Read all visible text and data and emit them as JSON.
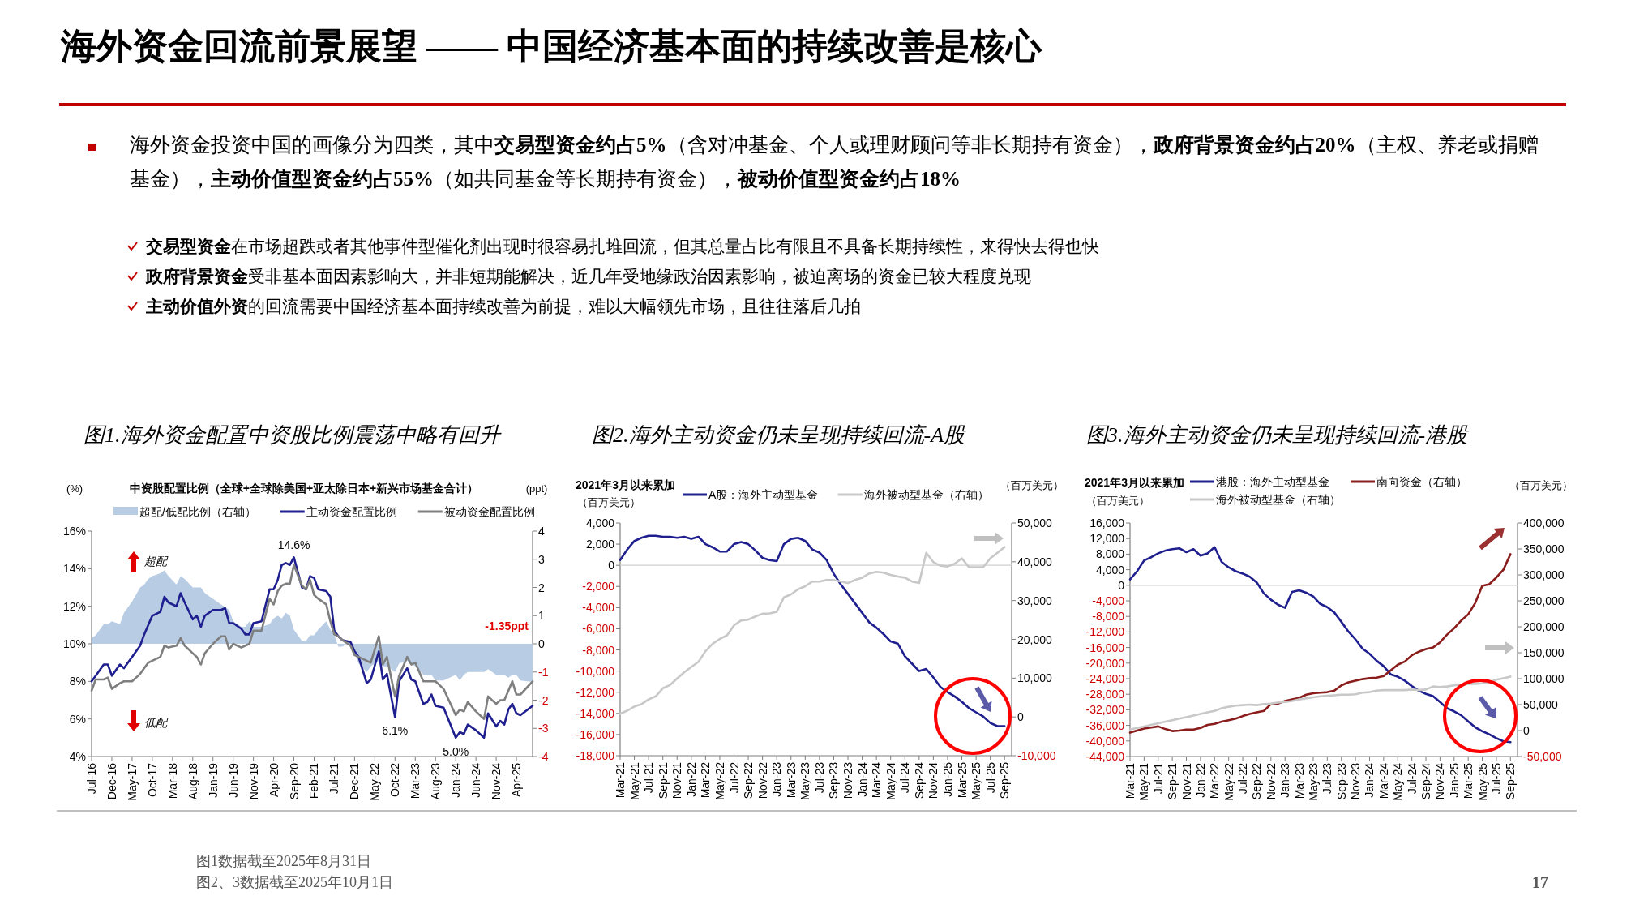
{
  "chart_data": [
    {
      "type": "other",
      "title": "海外资金回流前景展望 —— 中国经济基本面的持续改善是核心",
      "annotations": [
        "海外资金投资中国的画像分为四类，其中**交易型资金约占5%**（含对冲基金、个人或理财顾问等非长期持有资金），**政府背景资金约占20%**（主权、养老或捐赠基金），**主动价值型资金约占55%**（如共同基金等长期持有资金），**被动价值型资金约占18%**",
        "**交易型资金**在市场超跌或者其他事件型催化剂出现时很容易扎堆回流，但其总量占比有限且不具备长期持续性，来得快去得也快",
        "**政府背景资金**受非基本面因素影响大，并非短期能解决，近几年受地缘政治因素影响，被迫离场的资金已较大程度兑现",
        "**主动价值外资**的回流需要中国经济基本面持续改善为前提，难以大幅领先市场，且往往落后几拍",
        "图1数据截至2025年8月31日",
        "图2、3数据截至2025年10月1日",
        "17"
      ]
    },
    {
      "type": "line",
      "title": "图1.海外资金配置中资股比例震荡中略有回升",
      "subtitle": "中资股配置比例（全球+全球除美国+亚太除日本+新兴市场基金合计）",
      "ylabel": "(%)",
      "y2label": "(ppt)",
      "legend": "top",
      "xlim": [
        "2016-07",
        "2025-08"
      ],
      "xticks": [
        {
          "value": "2016-07",
          "label": "Jul-16"
        },
        {
          "value": "2016-12",
          "label": "Dec-16"
        },
        {
          "value": "2017-05",
          "label": "May-17"
        },
        {
          "value": "2017-10",
          "label": "Oct-17"
        },
        {
          "value": "2018-03",
          "label": "Mar-18"
        },
        {
          "value": "2018-08",
          "label": "Aug-18"
        },
        {
          "value": "2019-01",
          "label": "Jan-19"
        },
        {
          "value": "2019-06",
          "label": "Jun-19"
        },
        {
          "value": "2019-11",
          "label": "Nov-19"
        },
        {
          "value": "2020-04",
          "label": "Apr-20"
        },
        {
          "value": "2020-09",
          "label": "Sep-20"
        },
        {
          "value": "2021-02",
          "label": "Feb-21"
        },
        {
          "value": "2021-07",
          "label": "Jul-21"
        },
        {
          "value": "2021-12",
          "label": "Dec-21"
        },
        {
          "value": "2022-05",
          "label": "May-22"
        },
        {
          "value": "2022-10",
          "label": "Oct-22"
        },
        {
          "value": "2023-03",
          "label": "Mar-23"
        },
        {
          "value": "2023-08",
          "label": "Aug-23"
        },
        {
          "value": "2024-01",
          "label": "Jan-24"
        },
        {
          "value": "2024-06",
          "label": "Jun-24"
        },
        {
          "value": "2024-11",
          "label": "Nov-24"
        },
        {
          "value": "2025-04",
          "label": "Apr-25"
        }
      ],
      "ylim": [
        4,
        16
      ],
      "yticks": [
        {
          "value": 4,
          "label": "4%"
        },
        {
          "value": 6,
          "label": "6%"
        },
        {
          "value": 8,
          "label": "8%"
        },
        {
          "value": 10,
          "label": "10%"
        },
        {
          "value": 12,
          "label": "12%"
        },
        {
          "value": 14,
          "label": "14%"
        },
        {
          "value": 16,
          "label": "16%"
        }
      ],
      "y2lim": [
        -4,
        4
      ],
      "y2ticks": [
        -4,
        -3,
        -2,
        -1,
        0,
        1,
        2,
        3,
        4
      ],
      "x": [
        "2016-07",
        "2016-08",
        "2016-10",
        "2016-11",
        "2016-12",
        "2017-02",
        "2017-03",
        "2017-05",
        "2017-07",
        "2017-08",
        "2017-09",
        "2017-10",
        "2017-12",
        "2018-01",
        "2018-02",
        "2018-04",
        "2018-05",
        "2018-06",
        "2018-08",
        "2018-09",
        "2018-10",
        "2018-11",
        "2019-01",
        "2019-03",
        "2019-04",
        "2019-05",
        "2019-06",
        "2019-08",
        "2019-09",
        "2019-10",
        "2019-11",
        "2020-01",
        "2020-03",
        "2020-04",
        "2020-05",
        "2020-06",
        "2020-07",
        "2020-08",
        "2020-09",
        "2020-11",
        "2020-12",
        "2021-01",
        "2021-02",
        "2021-03",
        "2021-05",
        "2021-06",
        "2021-07",
        "2021-08",
        "2021-09",
        "2021-11",
        "2021-12",
        "2022-01",
        "2022-03",
        "2022-04",
        "2022-06",
        "2022-07",
        "2022-08",
        "2022-10",
        "2022-11",
        "2023-01",
        "2023-02",
        "2023-03",
        "2023-05",
        "2023-06",
        "2023-07",
        "2023-08",
        "2023-10",
        "2024-01",
        "2024-02",
        "2024-03",
        "2024-04",
        "2024-06",
        "2024-08",
        "2024-09",
        "2024-11",
        "2024-12",
        "2025-01",
        "2025-02",
        "2025-03",
        "2025-04",
        "2025-05",
        "2025-08"
      ],
      "series": [
        {
          "name": "超配/低配比例（右轴）",
          "type": "area",
          "axis": "y2",
          "color": "#b8cce4",
          "values": [
            0.2,
            0.3,
            0.7,
            0.7,
            0.8,
            0.7,
            1.1,
            1.5,
            2.0,
            2.1,
            2.3,
            2.4,
            2.5,
            2.6,
            2.4,
            2.1,
            2.4,
            2.3,
            2.0,
            2.0,
            2.0,
            1.8,
            1.6,
            1.4,
            1.3,
            1.2,
            0.8,
            0.6,
            0.6,
            0.8,
            0.6,
            0.6,
            0.7,
            0.9,
            1.0,
            0.9,
            1.1,
            1.0,
            0.5,
            0.1,
            0.1,
            0.3,
            0.3,
            0.5,
            0.8,
            0.5,
            0.3,
            -0.1,
            -0.1,
            0.1,
            -0.3,
            -0.7,
            -1.0,
            -0.8,
            -0.6,
            -0.8,
            -0.8,
            -1.0,
            -0.7,
            -0.6,
            -0.7,
            -0.8,
            -1.1,
            -1.1,
            -1.1,
            -1.3,
            -1.3,
            -1.1,
            -1.3,
            -1.1,
            -1.0,
            -1.0,
            -1.0,
            -0.9,
            -1.1,
            -1.1,
            -1.1,
            -1.2,
            -1.1,
            -1.1,
            -1.3,
            -1.35
          ]
        },
        {
          "name": "主动资金配置比例",
          "color": "#1f1f8f",
          "values": [
            8.0,
            8.3,
            8.9,
            8.9,
            8.3,
            8.9,
            8.7,
            9.3,
            9.9,
            10.5,
            11.0,
            11.5,
            11.7,
            12.5,
            12.2,
            12.0,
            12.7,
            12.2,
            11.3,
            11.5,
            10.9,
            11.5,
            11.8,
            11.8,
            11.9,
            11.1,
            11.1,
            10.8,
            10.5,
            10.5,
            11.1,
            11.2,
            12.9,
            12.9,
            13.4,
            14.2,
            14.3,
            14.2,
            14.6,
            13.0,
            12.9,
            13.6,
            13.5,
            12.9,
            12.8,
            12.5,
            10.7,
            10.4,
            10.2,
            10.1,
            9.6,
            9.3,
            7.9,
            8.1,
            9.6,
            8.1,
            8.4,
            6.1,
            8.0,
            8.7,
            8.1,
            8.0,
            6.8,
            6.9,
            7.3,
            6.7,
            6.6,
            5.0,
            5.3,
            5.2,
            5.7,
            5.4,
            5.0,
            6.3,
            5.6,
            5.9,
            5.7,
            6.5,
            6.8,
            6.3,
            6.2,
            6.7
          ]
        },
        {
          "name": "被动资金配置比例",
          "color": "#7f7f7f",
          "values": [
            7.5,
            8.1,
            8.1,
            8.2,
            7.6,
            7.9,
            8.0,
            8.0,
            8.4,
            8.7,
            9.0,
            9.1,
            9.3,
            9.9,
            9.8,
            9.9,
            10.3,
            9.9,
            9.5,
            9.3,
            8.9,
            9.5,
            10.0,
            10.4,
            10.4,
            9.7,
            10.0,
            9.8,
            9.9,
            10.0,
            10.7,
            10.7,
            12.4,
            12.1,
            12.8,
            13.1,
            13.2,
            13.2,
            14.2,
            13.1,
            12.9,
            13.4,
            12.6,
            12.4,
            12.1,
            11.2,
            10.5,
            10.4,
            10.2,
            9.9,
            9.4,
            9.3,
            9.1,
            9.0,
            10.4,
            8.9,
            9.3,
            7.2,
            8.3,
            9.3,
            8.9,
            9.0,
            8.0,
            8.0,
            8.0,
            8.0,
            7.6,
            6.2,
            6.5,
            6.4,
            6.9,
            6.4,
            6.0,
            7.2,
            6.8,
            7.0,
            7.0,
            7.5,
            8.0,
            7.3,
            7.3,
            8.0
          ]
        }
      ],
      "annotations": [
        {
          "text": "14.6%",
          "x": "2020-09",
          "y": 14.6
        },
        {
          "text": "6.1%",
          "x": "2022-10",
          "y": 6.1
        },
        {
          "text": "5.0%",
          "x": "2024-01",
          "y": 5.0
        },
        "-1.35ppt",
        "超配",
        "低配"
      ]
    },
    {
      "type": "line",
      "title": "图2.海外主动资金仍未呈现持续回流-A股",
      "subtitle": "2021年3月以来累加",
      "ylabel": "（百万美元）",
      "y2label": "（百万美元）",
      "legend": "top",
      "xlim": [
        "2021-03",
        "2025-10"
      ],
      "xticks": [
        {
          "value": "2021-03",
          "label": "Mar-21"
        },
        {
          "value": "2021-05",
          "label": "May-21"
        },
        {
          "value": "2021-07",
          "label": "Jul-21"
        },
        {
          "value": "2021-09",
          "label": "Sep-21"
        },
        {
          "value": "2021-11",
          "label": "Nov-21"
        },
        {
          "value": "2022-01",
          "label": "Jan-22"
        },
        {
          "value": "2022-03",
          "label": "Mar-22"
        },
        {
          "value": "2022-05",
          "label": "May-22"
        },
        {
          "value": "2022-07",
          "label": "Jul-22"
        },
        {
          "value": "2022-09",
          "label": "Sep-22"
        },
        {
          "value": "2022-11",
          "label": "Nov-22"
        },
        {
          "value": "2023-01",
          "label": "Jan-23"
        },
        {
          "value": "2023-03",
          "label": "Mar-23"
        },
        {
          "value": "2023-05",
          "label": "May-23"
        },
        {
          "value": "2023-07",
          "label": "Jul-23"
        },
        {
          "value": "2023-09",
          "label": "Sep-23"
        },
        {
          "value": "2023-11",
          "label": "Nov-23"
        },
        {
          "value": "2024-01",
          "label": "Jan-24"
        },
        {
          "value": "2024-03",
          "label": "Mar-24"
        },
        {
          "value": "2024-05",
          "label": "May-24"
        },
        {
          "value": "2024-07",
          "label": "Jul-24"
        },
        {
          "value": "2024-09",
          "label": "Sep-24"
        },
        {
          "value": "2024-11",
          "label": "Nov-24"
        },
        {
          "value": "2025-01",
          "label": "Jan-25"
        },
        {
          "value": "2025-03",
          "label": "Mar-25"
        },
        {
          "value": "2025-05",
          "label": "May-25"
        },
        {
          "value": "2025-07",
          "label": "Jul-25"
        },
        {
          "value": "2025-09",
          "label": "Sep-25"
        }
      ],
      "ylim": [
        -18000,
        4000
      ],
      "yticks": [
        {
          "value": 4000,
          "label": "4,000"
        },
        {
          "value": 2000,
          "label": "2,000"
        },
        0,
        {
          "value": -2000,
          "label": "-2,000"
        },
        {
          "value": -4000,
          "label": "-4,000"
        },
        {
          "value": -6000,
          "label": "-6,000"
        },
        {
          "value": -8000,
          "label": "-8,000"
        },
        {
          "value": -10000,
          "label": "-10,000"
        },
        {
          "value": -12000,
          "label": "-12,000"
        },
        {
          "value": -14000,
          "label": "-14,000"
        },
        {
          "value": -16000,
          "label": "-16,000"
        },
        {
          "value": -18000,
          "label": "-18,000"
        }
      ],
      "y2lim": [
        -10000,
        50000
      ],
      "y2ticks": [
        {
          "value": 50000,
          "label": "50,000"
        },
        {
          "value": 40000,
          "label": "40,000"
        },
        {
          "value": 30000,
          "label": "30,000"
        },
        {
          "value": 20000,
          "label": "20,000"
        },
        {
          "value": 10000,
          "label": "10,000"
        },
        0,
        {
          "value": -10000,
          "label": "-10,000"
        }
      ],
      "ref_lines": [
        {
          "axis": "y",
          "value": 0,
          "color": "#d0d0d0"
        }
      ],
      "x": [
        "2021-03",
        "2021-04",
        "2021-05",
        "2021-06",
        "2021-07",
        "2021-08",
        "2021-09",
        "2021-10",
        "2021-11",
        "2021-12",
        "2022-01",
        "2022-02",
        "2022-03",
        "2022-04",
        "2022-05",
        "2022-06",
        "2022-07",
        "2022-08",
        "2022-09",
        "2022-10",
        "2022-11",
        "2022-12",
        "2023-01",
        "2023-02",
        "2023-03",
        "2023-04",
        "2023-05",
        "2023-06",
        "2023-07",
        "2023-08",
        "2023-09",
        "2023-10",
        "2023-11",
        "2023-12",
        "2024-01",
        "2024-02",
        "2024-03",
        "2024-04",
        "2024-05",
        "2024-06",
        "2024-07",
        "2024-08",
        "2024-09",
        "2024-10",
        "2024-11",
        "2024-12",
        "2025-01",
        "2025-02",
        "2025-03",
        "2025-04",
        "2025-05",
        "2025-06",
        "2025-07",
        "2025-08",
        "2025-09"
      ],
      "series": [
        {
          "name": "A股：海外主动型基金",
          "color": "#1f1f8f",
          "values": [
            500,
            1500,
            2300,
            2600,
            2800,
            2800,
            2700,
            2700,
            2600,
            2700,
            2500,
            2700,
            2000,
            1700,
            1300,
            1300,
            2000,
            2200,
            2000,
            1400,
            700,
            500,
            400,
            2000,
            2500,
            2600,
            2300,
            1500,
            1200,
            500,
            -800,
            -1800,
            -2700,
            -3600,
            -4500,
            -5400,
            -5900,
            -6500,
            -7200,
            -7400,
            -8600,
            -9300,
            -10000,
            -9800,
            -10600,
            -11500,
            -12000,
            -12400,
            -12900,
            -13500,
            -13900,
            -14300,
            -14900,
            -15200,
            -15200
          ]
        },
        {
          "name": "海外被动型基金（右轴）",
          "axis": "y2",
          "color": "#c8c8c8",
          "values": [
            800,
            1600,
            2700,
            3300,
            4500,
            5300,
            7400,
            8200,
            9900,
            11500,
            12900,
            14200,
            17000,
            18900,
            20100,
            21000,
            23600,
            24900,
            25100,
            25900,
            26600,
            26700,
            27100,
            30800,
            31600,
            32900,
            33700,
            34900,
            34900,
            35300,
            35300,
            34900,
            34500,
            35300,
            35900,
            37000,
            37400,
            37200,
            36600,
            36200,
            35900,
            34900,
            34500,
            42300,
            39900,
            39000,
            38800,
            39500,
            40900,
            38600,
            38600,
            38600,
            40900,
            42300,
            43800
          ]
        }
      ]
    },
    {
      "type": "line",
      "title": "图3.海外主动资金仍未呈现持续回流-港股",
      "subtitle": "2021年3月以来累加",
      "ylabel": "（百万美元）",
      "y2label": "（百万美元）",
      "legend": "top",
      "xlim": [
        "2021-03",
        "2025-10"
      ],
      "xticks": [
        {
          "value": "2021-03",
          "label": "Mar-21"
        },
        {
          "value": "2021-05",
          "label": "May-21"
        },
        {
          "value": "2021-07",
          "label": "Jul-21"
        },
        {
          "value": "2021-09",
          "label": "Sep-21"
        },
        {
          "value": "2021-11",
          "label": "Nov-21"
        },
        {
          "value": "2022-01",
          "label": "Jan-22"
        },
        {
          "value": "2022-03",
          "label": "Mar-22"
        },
        {
          "value": "2022-05",
          "label": "May-22"
        },
        {
          "value": "2022-07",
          "label": "Jul-22"
        },
        {
          "value": "2022-09",
          "label": "Sep-22"
        },
        {
          "value": "2022-11",
          "label": "Nov-22"
        },
        {
          "value": "2023-01",
          "label": "Jan-23"
        },
        {
          "value": "2023-03",
          "label": "Mar-23"
        },
        {
          "value": "2023-05",
          "label": "May-23"
        },
        {
          "value": "2023-07",
          "label": "Jul-23"
        },
        {
          "value": "2023-09",
          "label": "Sep-23"
        },
        {
          "value": "2023-11",
          "label": "Nov-23"
        },
        {
          "value": "2024-01",
          "label": "Jan-24"
        },
        {
          "value": "2024-03",
          "label": "Mar-24"
        },
        {
          "value": "2024-05",
          "label": "May-24"
        },
        {
          "value": "2024-07",
          "label": "Jul-24"
        },
        {
          "value": "2024-09",
          "label": "Sep-24"
        },
        {
          "value": "2024-11",
          "label": "Nov-24"
        },
        {
          "value": "2025-01",
          "label": "Jan-25"
        },
        {
          "value": "2025-03",
          "label": "Mar-25"
        },
        {
          "value": "2025-05",
          "label": "May-25"
        },
        {
          "value": "2025-07",
          "label": "Jul-25"
        },
        {
          "value": "2025-09",
          "label": "Sep-25"
        }
      ],
      "ylim": [
        -44000,
        16000
      ],
      "yticks": [
        {
          "value": 16000,
          "label": "16,000"
        },
        {
          "value": 12000,
          "label": "12,000"
        },
        {
          "value": 8000,
          "label": "8,000"
        },
        {
          "value": 4000,
          "label": "4,000"
        },
        0,
        {
          "value": -4000,
          "label": "-4,000"
        },
        {
          "value": -8000,
          "label": "-8,000"
        },
        {
          "value": -12000,
          "label": "-12,000"
        },
        {
          "value": -16000,
          "label": "-16,000"
        },
        {
          "value": -20000,
          "label": "-20,000"
        },
        {
          "value": -24000,
          "label": "-24,000"
        },
        {
          "value": -28000,
          "label": "-28,000"
        },
        {
          "value": -32000,
          "label": "-32,000"
        },
        {
          "value": -36000,
          "label": "-36,000"
        },
        {
          "value": -40000,
          "label": "-40,000"
        },
        {
          "value": -44000,
          "label": "-44,000"
        }
      ],
      "y2lim": [
        -50000,
        400000
      ],
      "y2ticks": [
        {
          "value": 400000,
          "label": "400,000"
        },
        {
          "value": 350000,
          "label": "350,000"
        },
        {
          "value": 300000,
          "label": "300,000"
        },
        {
          "value": 250000,
          "label": "250,000"
        },
        {
          "value": 200000,
          "label": "200,000"
        },
        {
          "value": 150000,
          "label": "150,000"
        },
        {
          "value": 100000,
          "label": "100,000"
        },
        {
          "value": 50000,
          "label": "50,000"
        },
        0,
        {
          "value": -50000,
          "label": "-50,000"
        }
      ],
      "ref_lines": [
        {
          "axis": "y",
          "value": 0,
          "color": "#d0d0d0"
        }
      ],
      "x": [
        "2021-03",
        "2021-04",
        "2021-05",
        "2021-06",
        "2021-07",
        "2021-08",
        "2021-09",
        "2021-10",
        "2021-11",
        "2021-12",
        "2022-01",
        "2022-02",
        "2022-03",
        "2022-04",
        "2022-05",
        "2022-06",
        "2022-07",
        "2022-08",
        "2022-09",
        "2022-10",
        "2022-11",
        "2022-12",
        "2023-01",
        "2023-02",
        "2023-03",
        "2023-04",
        "2023-05",
        "2023-06",
        "2023-07",
        "2023-08",
        "2023-09",
        "2023-10",
        "2023-11",
        "2023-12",
        "2024-01",
        "2024-02",
        "2024-03",
        "2024-04",
        "2024-05",
        "2024-06",
        "2024-07",
        "2024-08",
        "2024-09",
        "2024-10",
        "2024-11",
        "2024-12",
        "2025-01",
        "2025-02",
        "2025-03",
        "2025-04",
        "2025-05",
        "2025-06",
        "2025-07",
        "2025-08",
        "2025-09"
      ],
      "series": [
        {
          "name": "港股：海外主动型基金",
          "color": "#1f1f8f",
          "values": [
            1500,
            3600,
            6400,
            7200,
            8200,
            8900,
            9300,
            9500,
            8500,
            9300,
            7600,
            8200,
            9800,
            6000,
            4600,
            3600,
            3000,
            2200,
            700,
            -2100,
            -3700,
            -5000,
            -5800,
            -1700,
            -1300,
            -1900,
            -2900,
            -4800,
            -5600,
            -7000,
            -9400,
            -11900,
            -13900,
            -16300,
            -17600,
            -19400,
            -20800,
            -22900,
            -23500,
            -24500,
            -25900,
            -27100,
            -27900,
            -28500,
            -30000,
            -31600,
            -32400,
            -33400,
            -35000,
            -36500,
            -37500,
            -38300,
            -39300,
            -40100,
            -40300
          ]
        },
        {
          "name": "南向资金（右轴）",
          "axis": "y2",
          "color": "#8b1c1c",
          "values": [
            -4000,
            0,
            4000,
            6000,
            8000,
            3000,
            -1000,
            0,
            2000,
            2000,
            5000,
            11000,
            13000,
            17000,
            20000,
            23000,
            28000,
            32000,
            35000,
            38000,
            51000,
            52000,
            57000,
            60000,
            63000,
            69000,
            72000,
            73000,
            74000,
            77000,
            87000,
            93000,
            96000,
            99000,
            101000,
            102000,
            105000,
            116000,
            127000,
            133000,
            145000,
            152000,
            157000,
            160000,
            170000,
            185000,
            197000,
            212000,
            224000,
            246000,
            279000,
            282000,
            295000,
            310000,
            340000
          ]
        },
        {
          "name": "海外被动型基金（右轴）",
          "axis": "y2",
          "color": "#c8c8c8",
          "values": [
            2000,
            5000,
            8000,
            11000,
            14000,
            17000,
            20000,
            23000,
            26000,
            29000,
            32000,
            35000,
            38000,
            43000,
            46000,
            48000,
            49000,
            50000,
            49000,
            51000,
            52000,
            54000,
            55000,
            57000,
            60000,
            62000,
            64000,
            66000,
            67000,
            68000,
            69000,
            69000,
            70000,
            73000,
            74000,
            77000,
            78000,
            78000,
            78000,
            78000,
            79000,
            78000,
            79000,
            85000,
            84000,
            85000,
            87000,
            88000,
            90000,
            90000,
            91000,
            93000,
            98000,
            101000,
            104000
          ]
        }
      ]
    }
  ]
}
